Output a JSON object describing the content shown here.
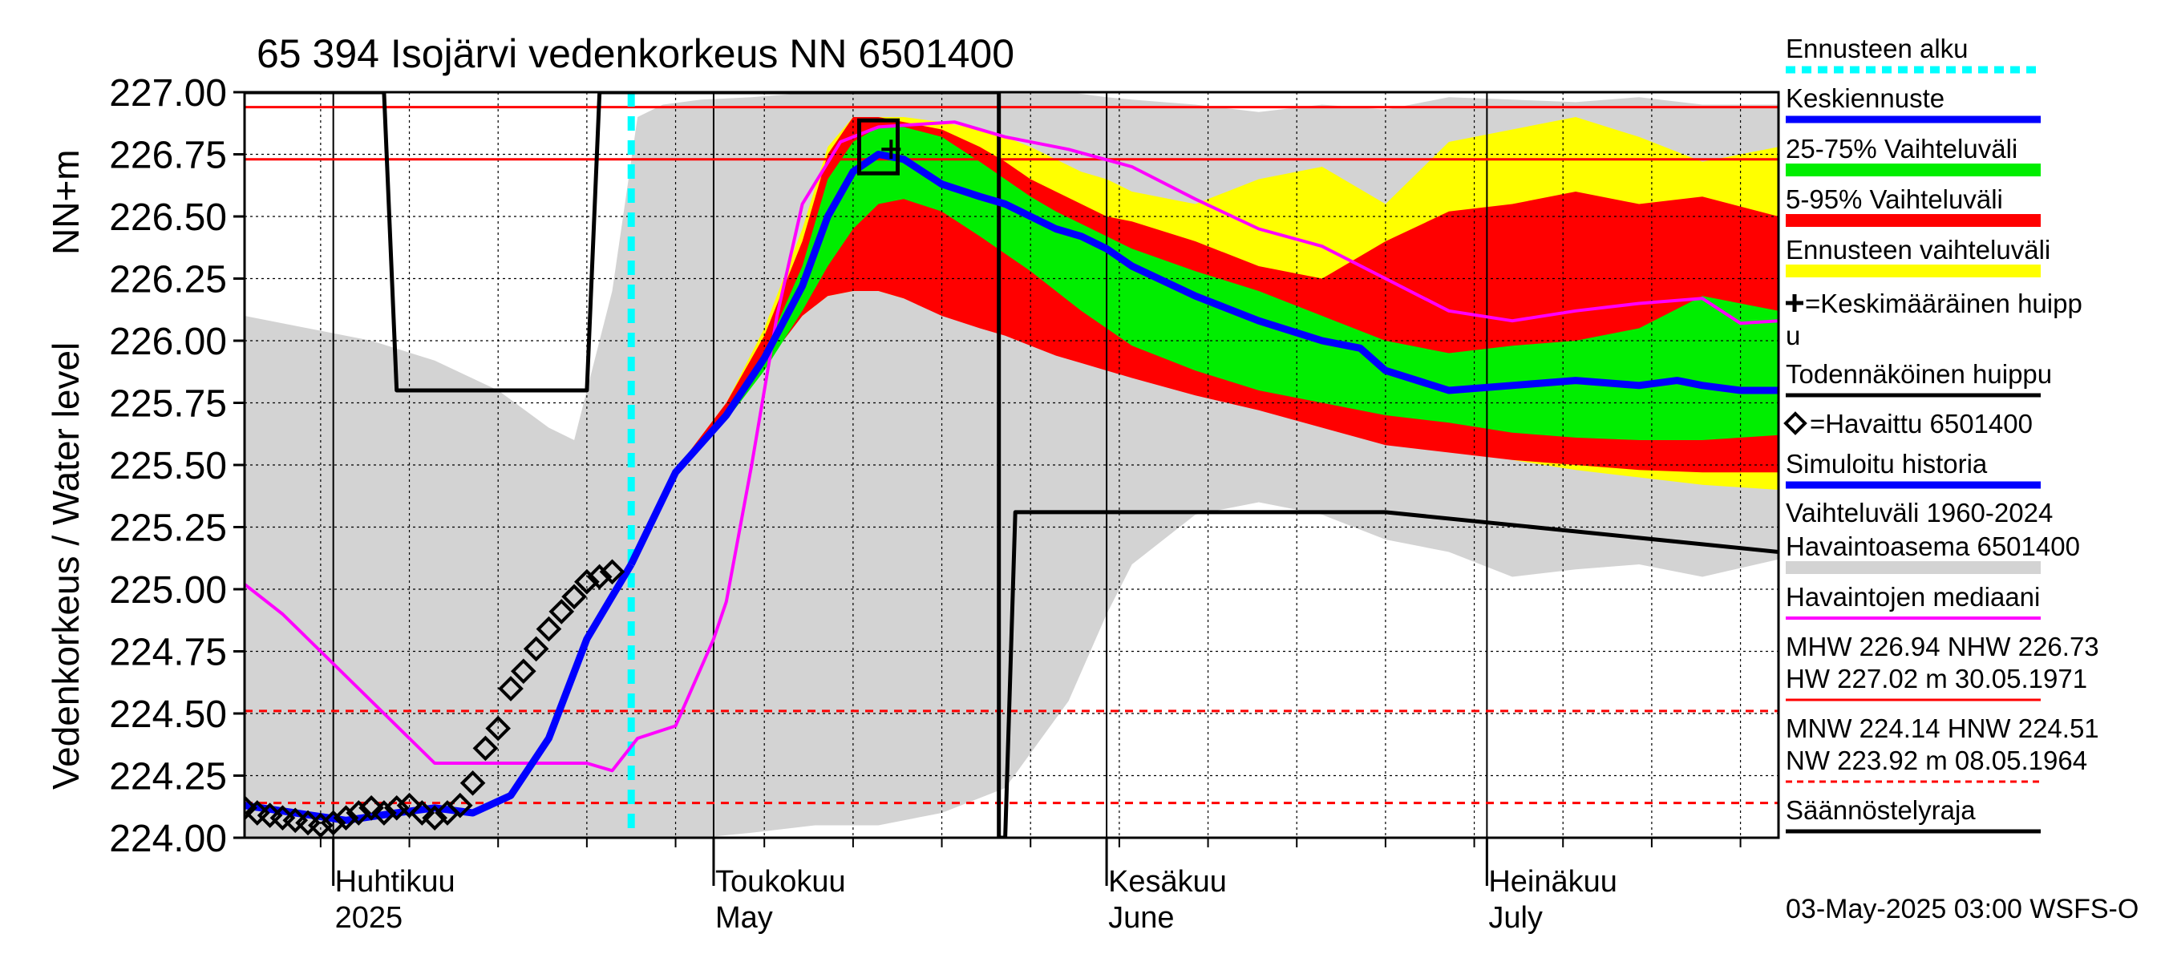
{
  "chart_data": {
    "type": "line",
    "title": "65 394 Isojärvi vedenkorkeus NN 6501400",
    "ylabel_left": "Vedenkorkeus / Water level",
    "ylabel_unit": "NN+m",
    "ylim": [
      224.0,
      227.0
    ],
    "y_ticks": [
      "224.00",
      "224.25",
      "224.50",
      "224.75",
      "225.00",
      "225.25",
      "225.50",
      "225.75",
      "226.00",
      "226.25",
      "226.50",
      "226.75",
      "227.00"
    ],
    "x_range_days": [
      0,
      121
    ],
    "x_start_date": "2025-03-25",
    "months": [
      {
        "day": 7,
        "fi": "Huhtikuu",
        "en": "2025"
      },
      {
        "day": 37,
        "fi": "Toukokuu",
        "en": "May"
      },
      {
        "day": 68,
        "fi": "Kesäkuu",
        "en": "June"
      },
      {
        "day": 98,
        "fi": "Heinäkuu",
        "en": "July"
      }
    ],
    "forecast_start_day": 30.5,
    "ref_lines": {
      "MHW": 226.94,
      "NHW": 226.73,
      "MNW": 224.14,
      "HNW": 224.51
    },
    "history_band": {
      "name": "Vaihteluväli 1960-2024 Havaintoasema 6501400",
      "x": [
        0,
        5,
        10,
        15,
        20,
        24,
        26,
        29,
        31,
        33,
        36,
        40,
        45,
        50,
        55,
        60,
        65,
        68,
        70,
        75,
        80,
        85,
        90,
        95,
        100,
        105,
        110,
        115,
        121
      ],
      "upper": [
        226.1,
        226.05,
        226.0,
        225.92,
        225.8,
        225.65,
        225.6,
        226.2,
        226.9,
        226.95,
        226.97,
        226.98,
        227.0,
        227.0,
        227.0,
        227.0,
        227.0,
        226.98,
        226.97,
        226.95,
        226.92,
        226.95,
        226.93,
        226.98,
        226.97,
        226.96,
        226.98,
        226.95,
        226.95
      ],
      "lower": [
        224.0,
        224.0,
        224.0,
        224.0,
        224.0,
        224.0,
        224.0,
        224.0,
        224.0,
        224.0,
        224.0,
        224.02,
        224.05,
        224.05,
        224.1,
        224.2,
        224.55,
        224.9,
        225.1,
        225.3,
        225.35,
        225.3,
        225.2,
        225.15,
        225.05,
        225.08,
        225.1,
        225.05,
        225.12
      ]
    },
    "band_yellow": {
      "name": "Ennusteen vaihteluväli",
      "x": [
        30.5,
        34,
        38,
        41,
        44,
        46,
        48,
        50,
        52,
        55,
        58,
        60,
        62,
        64,
        66,
        68,
        70,
        75,
        80,
        85,
        90,
        95,
        100,
        105,
        110,
        115,
        121
      ],
      "upper": [
        225.1,
        225.48,
        225.75,
        226.05,
        226.45,
        226.78,
        226.9,
        226.9,
        226.9,
        226.88,
        226.85,
        226.82,
        226.78,
        226.73,
        226.68,
        226.65,
        226.6,
        226.55,
        226.65,
        226.7,
        226.55,
        226.8,
        226.85,
        226.9,
        226.82,
        226.72,
        226.78
      ],
      "lower": [
        225.1,
        225.48,
        225.72,
        225.92,
        226.1,
        226.18,
        226.2,
        226.2,
        226.17,
        226.12,
        226.08,
        226.05,
        226.02,
        225.98,
        225.95,
        225.93,
        225.9,
        225.82,
        225.75,
        225.68,
        225.62,
        225.57,
        225.52,
        225.48,
        225.45,
        225.42,
        225.4
      ]
    },
    "band_red": {
      "name": "5-95% Vaihteluväli",
      "x": [
        30.5,
        34,
        38,
        41,
        44,
        46,
        48,
        50,
        52,
        55,
        58,
        60,
        62,
        64,
        66,
        68,
        70,
        75,
        80,
        85,
        90,
        95,
        100,
        105,
        110,
        115,
        121
      ],
      "upper": [
        225.1,
        225.48,
        225.75,
        226.02,
        226.4,
        226.75,
        226.9,
        226.9,
        226.88,
        226.85,
        226.78,
        226.72,
        226.65,
        226.6,
        226.55,
        226.5,
        226.48,
        226.4,
        226.3,
        226.25,
        226.4,
        226.52,
        226.55,
        226.6,
        226.55,
        226.58,
        226.5
      ],
      "lower": [
        225.1,
        225.47,
        225.7,
        225.9,
        226.1,
        226.18,
        226.2,
        226.2,
        226.17,
        226.1,
        226.05,
        226.02,
        225.98,
        225.94,
        225.91,
        225.88,
        225.85,
        225.78,
        225.72,
        225.65,
        225.58,
        225.55,
        225.52,
        225.5,
        225.48,
        225.47,
        225.47
      ]
    },
    "band_green": {
      "name": "25-75% Vaihteluväli",
      "x": [
        30.5,
        34,
        38,
        41,
        44,
        46,
        48,
        50,
        52,
        55,
        58,
        60,
        62,
        64,
        66,
        68,
        70,
        75,
        80,
        85,
        90,
        95,
        100,
        105,
        110,
        115,
        121
      ],
      "upper": [
        225.1,
        225.47,
        225.72,
        225.95,
        226.3,
        226.65,
        226.8,
        226.86,
        226.86,
        226.82,
        226.72,
        226.65,
        226.58,
        226.52,
        226.47,
        226.42,
        226.37,
        226.28,
        226.2,
        226.1,
        226.0,
        225.95,
        225.98,
        226.0,
        226.05,
        226.18,
        226.12
      ],
      "lower": [
        225.1,
        225.46,
        225.68,
        225.88,
        226.12,
        226.3,
        226.45,
        226.55,
        226.57,
        226.52,
        226.42,
        226.35,
        226.28,
        226.2,
        226.12,
        226.05,
        225.98,
        225.88,
        225.8,
        225.75,
        225.7,
        225.67,
        225.63,
        225.61,
        225.6,
        225.6,
        225.62
      ]
    },
    "series": [
      {
        "name": "Keskiennuste",
        "color": "#0000ff",
        "x": [
          30.5,
          34,
          38,
          41,
          44,
          46,
          48,
          50,
          52,
          55,
          58,
          60,
          62,
          64,
          66,
          68,
          70,
          75,
          80,
          85,
          88,
          90,
          95,
          100,
          105,
          110,
          113,
          115,
          118,
          121
        ],
        "y": [
          225.1,
          225.47,
          225.7,
          225.93,
          226.22,
          226.5,
          226.68,
          226.75,
          226.73,
          226.63,
          226.58,
          226.55,
          226.5,
          226.45,
          226.42,
          226.37,
          226.3,
          226.18,
          226.08,
          226.0,
          225.97,
          225.88,
          225.8,
          225.82,
          225.84,
          225.82,
          225.84,
          225.82,
          225.8,
          225.8
        ]
      },
      {
        "name": "Simuloitu historia",
        "color": "#0000ff",
        "x": [
          0,
          4,
          8,
          12,
          15,
          18,
          21,
          24,
          27,
          30.5
        ],
        "y": [
          224.13,
          224.1,
          224.07,
          224.1,
          224.12,
          224.1,
          224.17,
          224.4,
          224.8,
          225.1
        ]
      },
      {
        "name": "Havaintojen mediaani",
        "color": "#ff00ff",
        "x": [
          0,
          3,
          6,
          9,
          11,
          13,
          15,
          17,
          21,
          24,
          27,
          29,
          31,
          34,
          37,
          38,
          40,
          42,
          44,
          47,
          50,
          53,
          56,
          60,
          65,
          70,
          75,
          80,
          85,
          90,
          95,
          100,
          105,
          110,
          115,
          118,
          121
        ],
        "y": [
          225.02,
          224.9,
          224.75,
          224.6,
          224.5,
          224.4,
          224.3,
          224.3,
          224.3,
          224.3,
          224.3,
          224.27,
          224.4,
          224.45,
          224.8,
          224.95,
          225.5,
          226.1,
          226.55,
          226.8,
          226.86,
          226.87,
          226.88,
          226.82,
          226.77,
          226.7,
          226.57,
          226.45,
          226.38,
          226.25,
          226.12,
          226.08,
          226.12,
          226.15,
          226.17,
          226.07,
          226.08
        ]
      },
      {
        "name": "Säännöstelyraja",
        "color": "#000000",
        "x": [
          0,
          11,
          12,
          27,
          28,
          59.5,
          59.5,
          60,
          60.8,
          90,
          121
        ],
        "y": [
          227.0,
          227.0,
          225.8,
          225.8,
          227.0,
          227.0,
          224.0,
          224.0,
          225.31,
          225.31,
          225.15
        ]
      }
    ],
    "observed": {
      "name": "=Havaittu 6501400",
      "x": [
        0,
        1,
        2,
        3,
        4,
        5,
        6,
        7,
        8,
        9,
        10,
        11,
        12,
        13,
        14,
        15,
        16,
        17,
        18,
        19,
        20,
        21,
        22,
        23,
        24,
        25,
        26,
        27,
        28,
        29
      ],
      "y": [
        224.12,
        224.1,
        224.09,
        224.08,
        224.07,
        224.06,
        224.05,
        224.06,
        224.08,
        224.1,
        224.12,
        224.1,
        224.12,
        224.13,
        224.1,
        224.08,
        224.1,
        224.13,
        224.22,
        224.36,
        224.44,
        224.6,
        224.67,
        224.76,
        224.84,
        224.91,
        224.97,
        225.03,
        225.05,
        225.07
      ]
    },
    "average_peak": {
      "day": 51,
      "value": 226.77
    },
    "probable_peak": {
      "day": 50,
      "value": 226.78
    },
    "legend": [
      "Ennusteen alku",
      "Keskiennuste",
      "25-75% Vaihteluväli",
      "5-95% Vaihteluväli",
      "Ennusteen vaihteluväli",
      "=Keskimääräinen huipp",
      "u",
      "Todennäköinen huippu",
      "=Havaittu 6501400",
      "Simuloitu historia",
      "Vaihteluväli 1960-2024",
      " Havaintoasema 6501400",
      "Havaintojen mediaani",
      "MHW 226.94 NHW 226.73",
      "HW 227.02 m 30.05.1971",
      "MNW 224.14 HNW 224.51",
      "NW 223.92 m 08.05.1964",
      "Säännöstelyraja"
    ],
    "footer": "03-May-2025 03:00 WSFS-O",
    "colors": {
      "history": "#d3d3d3",
      "yellow": "#ffff00",
      "red": "#ff0000",
      "green": "#00ee00",
      "forecast_start": "#00ffff",
      "grid": "#000000"
    }
  }
}
